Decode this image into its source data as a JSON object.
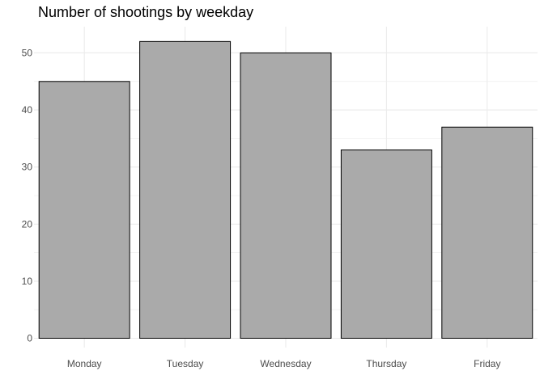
{
  "chart_data": {
    "type": "bar",
    "title": "Number of shootings by weekday",
    "xlabel": "",
    "ylabel": "",
    "categories": [
      "Monday",
      "Tuesday",
      "Wednesday",
      "Thursday",
      "Friday"
    ],
    "values": [
      45,
      52,
      50,
      33,
      37
    ],
    "ylim": [
      0,
      54.6
    ],
    "yticks": [
      0,
      10,
      20,
      30,
      40,
      50
    ],
    "grid": true,
    "legend": "none",
    "bar_fill": "#aaaaaa",
    "bar_outline": "#000000",
    "grid_color": "#ebebeb",
    "tick_label_color": "#4d4d4d"
  }
}
